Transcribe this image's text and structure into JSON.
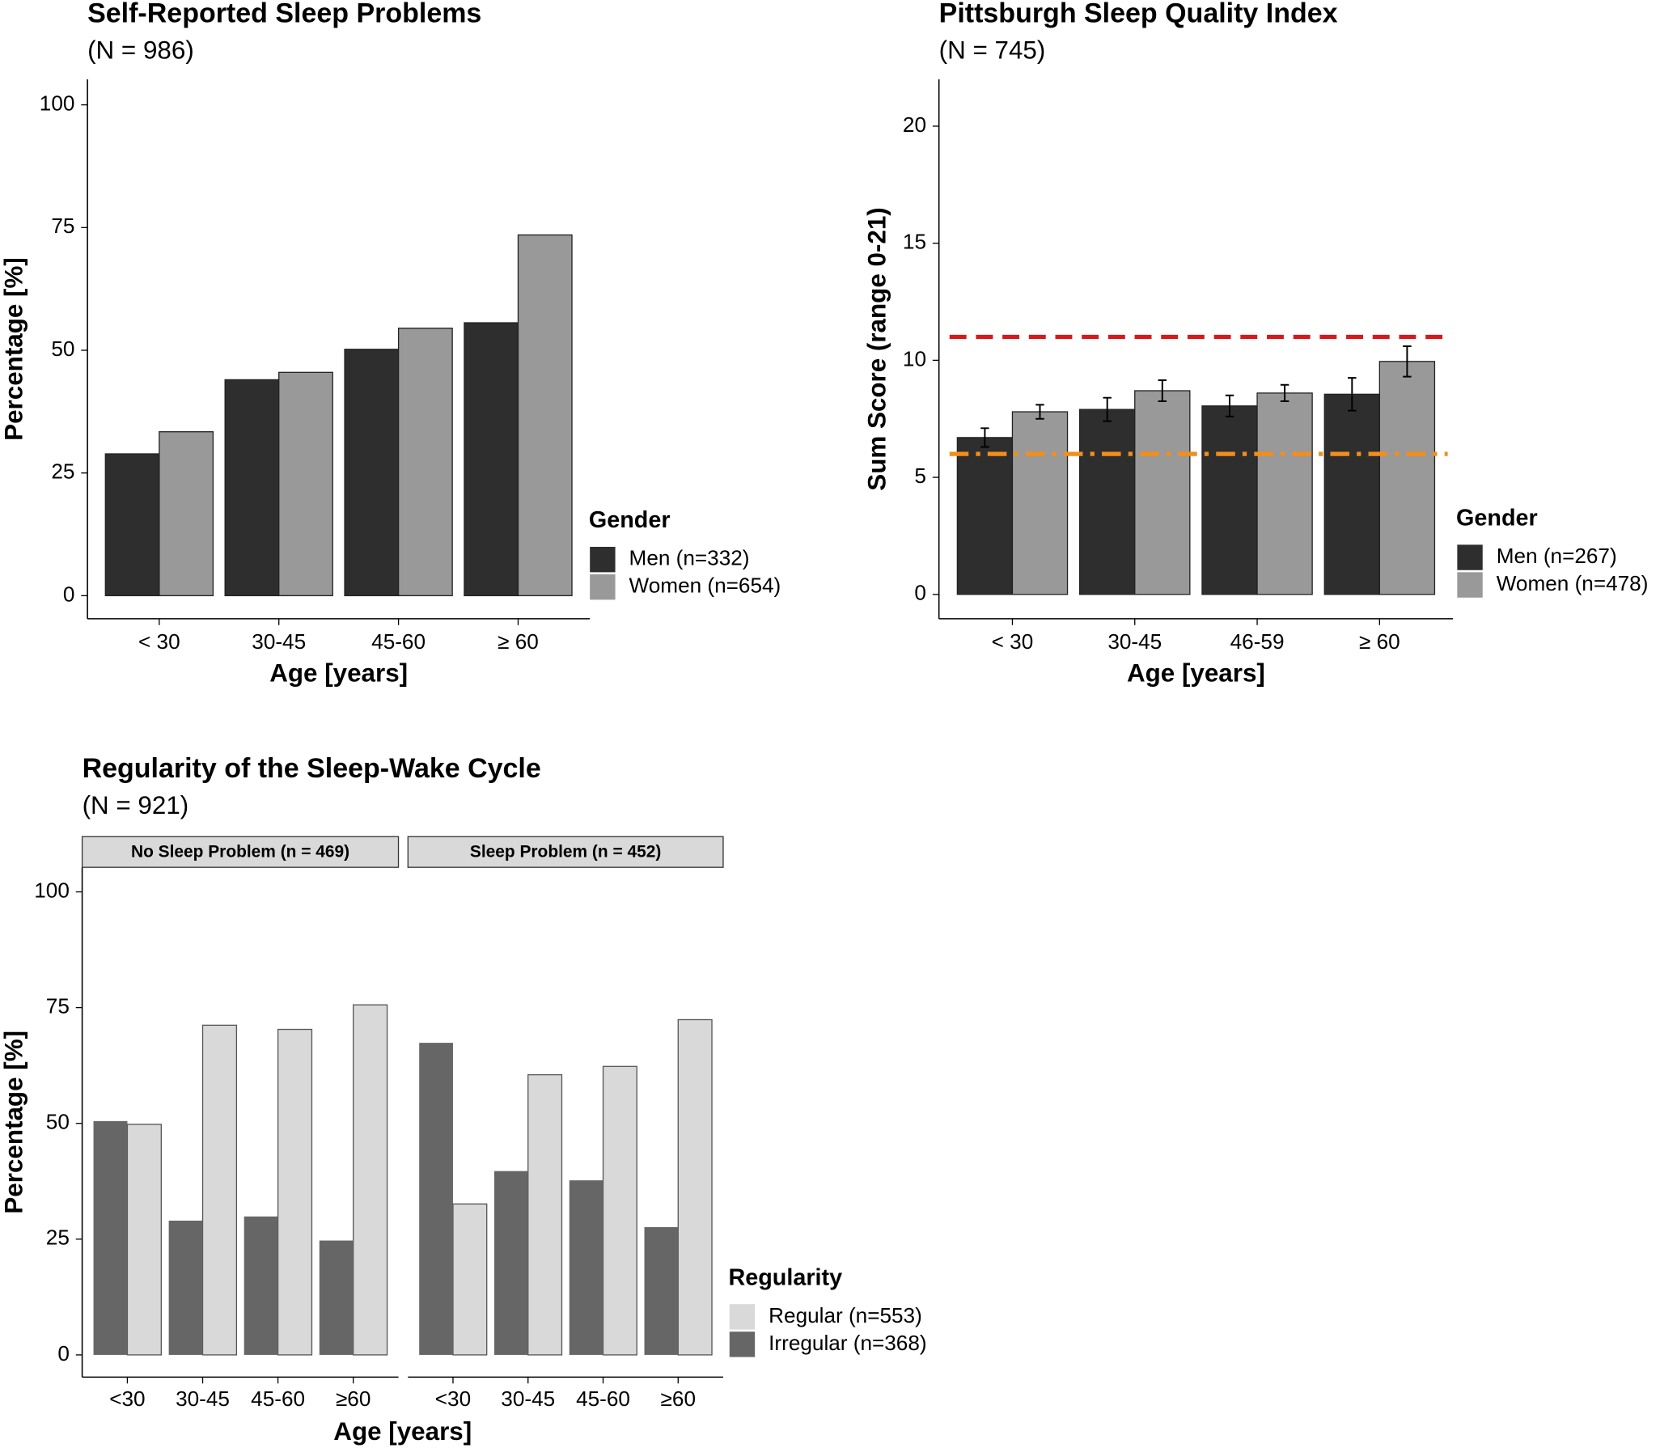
{
  "chart_data": [
    {
      "type": "bar",
      "title": "Self-Reported Sleep Problems",
      "subtitle": "(N = 986)",
      "x_label": "Age [years]",
      "y_label": "Percentage [%]",
      "legend_title": "Gender",
      "categories": [
        "< 30",
        "30-45",
        "45-60",
        "≥ 60"
      ],
      "series": [
        {
          "name": "Men (n=332)",
          "color": "#2e2e2e",
          "values": [
            28.9,
            44.0,
            50.2,
            55.6
          ]
        },
        {
          "name": "Women (n=654)",
          "color": "#999999",
          "values": [
            33.4,
            45.5,
            54.5,
            73.5
          ]
        }
      ],
      "ylim": [
        -4.7,
        105.2
      ],
      "yticks": [
        0,
        25,
        50,
        75,
        100
      ],
      "grid": false,
      "legend": "right"
    },
    {
      "type": "bar",
      "title": "Pittsburgh Sleep Quality Index",
      "subtitle": "(N = 745)",
      "x_label": "Age [years]",
      "y_label": "Sum Score (range 0-21)",
      "legend_title": "Gender",
      "categories": [
        "< 30",
        "30-45",
        "46-59",
        "≥ 60"
      ],
      "series": [
        {
          "name": "Men (n=267)",
          "color": "#2e2e2e",
          "values": [
            6.7,
            7.9,
            8.05,
            8.55
          ],
          "errors": [
            0.4,
            0.5,
            0.45,
            0.7
          ]
        },
        {
          "name": "Women (n=478)",
          "color": "#999999",
          "values": [
            7.8,
            8.7,
            8.6,
            9.95
          ],
          "errors": [
            0.3,
            0.45,
            0.35,
            0.65
          ]
        }
      ],
      "hlines": [
        {
          "value": 11,
          "color": "#d7191c",
          "style": "dashed"
        },
        {
          "value": 6,
          "color": "#f28e1c",
          "style": "dashdot"
        }
      ],
      "ylim": [
        -1.04,
        22.0
      ],
      "yticks": [
        0,
        5,
        10,
        15,
        20
      ],
      "grid": false,
      "legend": "right"
    },
    {
      "type": "facet_bar",
      "title": "Regularity of the Sleep-Wake Cycle",
      "subtitle": "(N = 921)",
      "x_label": "Age [years]",
      "y_label": "Percentage [%]",
      "legend_title": "Regularity",
      "categories": [
        "<30",
        "30-45",
        "45-60",
        "≥60"
      ],
      "series": [
        {
          "name": "Regular (n=553)",
          "color": "#d9d9d9"
        },
        {
          "name": "Irregular (n=368)",
          "color": "#666666"
        }
      ],
      "facets": [
        {
          "label": "No Sleep Problem (n = 469)",
          "values": [
            [
              49.8,
              71.2,
              70.3,
              75.6
            ],
            [
              50.5,
              29.0,
              29.9,
              24.7
            ]
          ]
        },
        {
          "label": "Sleep Problem (n = 452)",
          "values": [
            [
              32.6,
              60.5,
              62.3,
              72.4
            ],
            [
              67.4,
              39.7,
              37.7,
              27.6
            ]
          ]
        }
      ],
      "ylim": [
        -4.8,
        105.3
      ],
      "yticks": [
        0,
        25,
        50,
        75,
        100
      ],
      "grid": false,
      "legend": "right"
    }
  ]
}
